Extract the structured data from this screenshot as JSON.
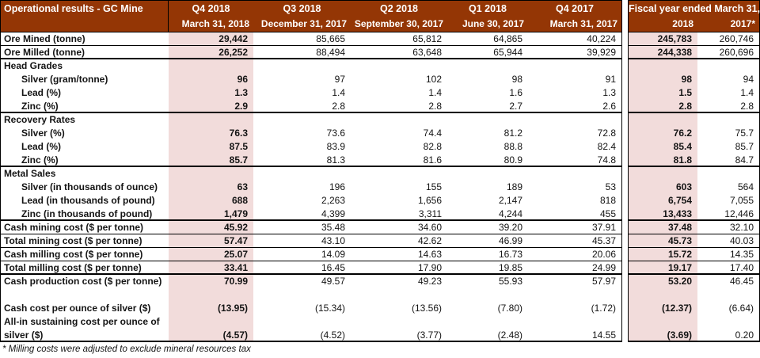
{
  "header": {
    "title": "Operational results - GC Mine",
    "quarter_columns": [
      {
        "label": "Q4 2018",
        "sublabel": "March 31, 2018"
      },
      {
        "label": "Q3 2018",
        "sublabel": "December 31, 2017"
      },
      {
        "label": "Q2 2018",
        "sublabel": "September 30, 2017"
      },
      {
        "label": "Q1 2018",
        "sublabel": "June 30, 2017"
      },
      {
        "label": "Q4 2017",
        "sublabel": "March 31, 2017"
      }
    ],
    "fiscal": {
      "title": "Fiscal year ended March 31,",
      "columns": [
        "2018",
        "2017*"
      ]
    }
  },
  "rows": [
    {
      "label": "Ore Mined (tonne)",
      "indent": false,
      "rule": "thin",
      "values": [
        "29,442",
        "85,665",
        "65,812",
        "64,865",
        "40,224",
        "245,783",
        "260,746"
      ]
    },
    {
      "label": "Ore Milled (tonne)",
      "indent": false,
      "rule": "thick",
      "values": [
        "26,252",
        "88,494",
        "63,648",
        "65,944",
        "39,929",
        "244,338",
        "260,696"
      ]
    },
    {
      "label": "Head Grades",
      "indent": false,
      "rule": "none",
      "values": []
    },
    {
      "label": "Silver (gram/tonne)",
      "indent": true,
      "rule": "none",
      "values": [
        "96",
        "97",
        "102",
        "98",
        "91",
        "98",
        "94"
      ]
    },
    {
      "label": "Lead (%)",
      "indent": true,
      "rule": "none",
      "values": [
        "1.3",
        "1.4",
        "1.4",
        "1.6",
        "1.3",
        "1.5",
        "1.4"
      ]
    },
    {
      "label": "Zinc (%)",
      "indent": true,
      "rule": "thick",
      "values": [
        "2.9",
        "2.8",
        "2.8",
        "2.7",
        "2.6",
        "2.8",
        "2.8"
      ]
    },
    {
      "label": "Recovery Rates",
      "indent": false,
      "rule": "none",
      "values": []
    },
    {
      "label": "Silver (%)",
      "indent": true,
      "rule": "none",
      "values": [
        "76.3",
        "73.6",
        "74.4",
        "81.2",
        "72.8",
        "76.2",
        "75.7"
      ]
    },
    {
      "label": "Lead (%)",
      "indent": true,
      "rule": "none",
      "values": [
        "87.5",
        "83.9",
        "82.8",
        "88.8",
        "82.4",
        "85.4",
        "85.7"
      ]
    },
    {
      "label": "Zinc (%)",
      "indent": true,
      "rule": "thick",
      "values": [
        "85.7",
        "81.3",
        "81.6",
        "80.9",
        "74.8",
        "81.8",
        "84.7"
      ]
    },
    {
      "label": "Metal Sales",
      "indent": false,
      "rule": "none",
      "values": []
    },
    {
      "label": "Silver (in thousands of ounce)",
      "indent": true,
      "rule": "none",
      "values": [
        "63",
        "196",
        "155",
        "189",
        "53",
        "603",
        "564"
      ]
    },
    {
      "label": "Lead (in thousands of pound)",
      "indent": true,
      "rule": "none",
      "values": [
        "688",
        "2,263",
        "1,656",
        "2,147",
        "818",
        "6,754",
        "7,055"
      ]
    },
    {
      "label": "Zinc (in thousands of pound)",
      "indent": true,
      "rule": "thick",
      "values": [
        "1,479",
        "4,399",
        "3,311",
        "4,244",
        "455",
        "13,433",
        "12,446"
      ]
    },
    {
      "label": "Cash mining cost ($ per tonne)",
      "indent": false,
      "rule": "thin",
      "values": [
        "45.92",
        "35.48",
        "34.60",
        "39.20",
        "37.91",
        "37.48",
        "32.10"
      ]
    },
    {
      "label": "Total mining cost ($ per tonne)",
      "indent": false,
      "rule": "thin",
      "values": [
        "57.47",
        "43.10",
        "42.62",
        "46.99",
        "45.37",
        "45.73",
        "40.03"
      ]
    },
    {
      "label": "Cash milling cost ($ per tonne)",
      "indent": false,
      "rule": "thin",
      "values": [
        "25.07",
        "14.09",
        "14.63",
        "16.73",
        "20.06",
        "15.72",
        "14.35"
      ]
    },
    {
      "label": "Total milling cost ($ per tonne)",
      "indent": false,
      "rule": "thick",
      "values": [
        "33.41",
        "16.45",
        "17.90",
        "19.85",
        "24.99",
        "19.17",
        "17.40"
      ]
    },
    {
      "label": "Cash production cost ($ per tonne)",
      "indent": false,
      "rule": "none",
      "values": [
        "70.99",
        "49.57",
        "49.23",
        "55.93",
        "57.97",
        "53.20",
        "46.45"
      ]
    },
    {
      "label": "",
      "indent": false,
      "rule": "none",
      "values": []
    },
    {
      "label": "Cash cost per ounce of silver ($)",
      "indent": false,
      "rule": "none",
      "values": [
        "(13.95)",
        "(15.34)",
        "(13.56)",
        "(7.80)",
        "(1.72)",
        "(12.37)",
        "(6.64)"
      ]
    },
    {
      "label": "All-in sustaining cost per ounce of",
      "indent": false,
      "rule": "none",
      "values": []
    },
    {
      "label": "silver ($)",
      "indent": false,
      "rule": "thick",
      "values": [
        "(4.57)",
        "(4.52)",
        "(3.77)",
        "(2.48)",
        "14.55",
        "(3.69)",
        "0.20"
      ]
    }
  ],
  "footnote": "* Milling costs were adjusted to exclude mineral resources tax",
  "colors": {
    "header_bg": "#943605",
    "header_text": "#FFFFFF",
    "highlight_bg": "#F2DCDB",
    "border": "#000000"
  }
}
